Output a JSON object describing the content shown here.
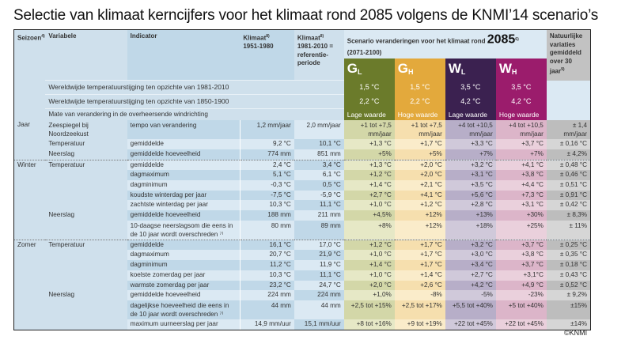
{
  "title": "Selectie van klimaat kerncijfers voor het klimaat rond 2085 volgens de KNMI’14 scenario’s",
  "header": {
    "seizoen": "Seizoen",
    "seizoen_note": "4)",
    "variabele": "Variabele",
    "indicator": "Indicator",
    "klimaat1": "Klimaat",
    "klimaat1_note": "8)",
    "klimaat1_period": "1951-1980",
    "klimaat2": "Klimaat",
    "klimaat2_note": "8)",
    "klimaat2_period": "1981-2010 = referentie-periode",
    "scenario_text": "Scenario veranderingen voor het klimaat rond",
    "scenario_year": "2085",
    "scenario_note": "6)",
    "scenario_period": "(2071-2100)",
    "natural": "Natuurlijke variaties gemiddeld over 30 jaar",
    "natural_note": "9)",
    "scenarios": [
      {
        "letter": "G",
        "sub": "L",
        "color": "#6b7b2b"
      },
      {
        "letter": "G",
        "sub": "H",
        "color": "#e3a93c"
      },
      {
        "letter": "W",
        "sub": "L",
        "color": "#3b2150"
      },
      {
        "letter": "W",
        "sub": "H",
        "color": "#9b1c6c"
      }
    ]
  },
  "global_rows": [
    {
      "label": "Wereldwijde temperatuurstijging ten opzichte van 1981-2010",
      "values": [
        "1,5 °C",
        "1,5 °C",
        "3,5 °C",
        "3,5 °C"
      ]
    },
    {
      "label": "Wereldwijde temperatuurstijging ten opzichte van 1850-1900",
      "values": [
        "2,2 °C",
        "2,2 °C",
        "4,2 °C",
        "4,2 °C"
      ]
    },
    {
      "label": "Mate van verandering in de overheersende windrichting",
      "values": [
        "Lage waarde",
        "Hoge waarde",
        "Lage waarde",
        "Hoge waarde"
      ]
    }
  ],
  "rows": [
    {
      "season": "Jaar",
      "variable": "Zeespiegel bij Noordzeekust",
      "indicator": "tempo van verandering",
      "k1": "1,2 mm/jaar",
      "k2": "2,0 mm/jaar",
      "gl": "+1 tot +7,5 mm/jaar",
      "gh": "+1 tot +7,5 mm/jaar",
      "wl": "+4 tot +10,5 mm/jaar",
      "wh": "+4 tot +10,5 mm/jaar",
      "nat": "± 1,4 mm/jaar",
      "two": true
    },
    {
      "season": "",
      "variable": "Temperatuur",
      "indicator": "gemiddelde",
      "k1": "9,2 °C",
      "k2": "10,1 °C",
      "gl": "+1,3 °C",
      "gh": "+1,7 °C",
      "wl": "+3,3 °C",
      "wh": "+3,7 °C",
      "nat": "± 0,16 °C"
    },
    {
      "season": "",
      "variable": "Neerslag",
      "indicator": "gemiddelde hoeveelheid",
      "k1": "774 mm",
      "k2": "851 mm",
      "gl": "+5%",
      "gh": "+5%",
      "wl": "+7%",
      "wh": "+7%",
      "nat": "± 4,2%"
    },
    {
      "season": "Winter",
      "variable": "Temperatuur",
      "indicator": "gemiddelde",
      "k1": "2,4 °C",
      "k2": "3,4 °C",
      "gl": "+1,3 °C",
      "gh": "+2,0 °C",
      "wl": "+3,2 °C",
      "wh": "+4,1 °C",
      "nat": "± 0,48 °C",
      "sep": true
    },
    {
      "season": "",
      "variable": "",
      "indicator": "dagmaximum",
      "k1": "5,1 °C",
      "k2": "6,1 °C",
      "gl": "+1,2 °C",
      "gh": "+2,0 °C",
      "wl": "+3,1 °C",
      "wh": "+3,8 °C",
      "nat": "± 0,46 °C"
    },
    {
      "season": "",
      "variable": "",
      "indicator": "dagminimum",
      "k1": "-0,3 °C",
      "k2": "0,5 °C",
      "gl": "+1,4 °C",
      "gh": "+2,1 °C",
      "wl": "+3,5 °C",
      "wh": "+4,4 °C",
      "nat": "± 0,51 °C"
    },
    {
      "season": "",
      "variable": "",
      "indicator": "koudste winterdag per jaar",
      "k1": "-7,5 °C",
      "k2": "-5,9 °C",
      "gl": "+2,7 °C",
      "gh": "+4,1 °C",
      "wl": "+5,6 °C",
      "wh": "+7,3 °C",
      "nat": "± 0,91 °C"
    },
    {
      "season": "",
      "variable": "",
      "indicator": "zachtste winterdag per jaar",
      "k1": "10,3 °C",
      "k2": "11,1 °C",
      "gl": "+1,0 °C",
      "gh": "+1,2 °C",
      "wl": "+2,8 °C",
      "wh": "+3,1 °C",
      "nat": "± 0,42 °C"
    },
    {
      "season": "",
      "variable": "Neerslag",
      "indicator": "gemiddelde hoeveelheid",
      "k1": "188 mm",
      "k2": "211 mm",
      "gl": "+4,5%",
      "gh": "+12%",
      "wl": "+13%",
      "wh": "+30%",
      "nat": "± 8,3%"
    },
    {
      "season": "",
      "variable": "",
      "indicator": "10-daagse neerslagsom die eens in de 10 jaar wordt overschreden ⁷⁾",
      "k1": "80 mm",
      "k2": "89 mm",
      "gl": "+8%",
      "gh": "+12%",
      "wl": "+18%",
      "wh": "+25%",
      "nat": "± 11%",
      "two": true
    },
    {
      "season": "Zomer",
      "variable": "Temperatuur",
      "indicator": "gemiddelde",
      "k1": "16,1 °C",
      "k2": "17,0 °C",
      "gl": "+1,2 °C",
      "gh": "+1,7 °C",
      "wl": "+3,2 °C",
      "wh": "+3,7 °C",
      "nat": "± 0,25 °C",
      "sep": true
    },
    {
      "season": "",
      "variable": "",
      "indicator": "dagmaximum",
      "k1": "20,7 °C",
      "k2": "21,9 °C",
      "gl": "+1,0 °C",
      "gh": "+1,7 °C",
      "wl": "+3,0 °C",
      "wh": "+3,8 °C",
      "nat": "± 0,35 °C"
    },
    {
      "season": "",
      "variable": "",
      "indicator": "dagminimum",
      "k1": "11,2 °C",
      "k2": "11,9 °C",
      "gl": "+1,4 °C",
      "gh": "+1,7 °C",
      "wl": "+3,4 °C",
      "wh": "+3,7 °C",
      "nat": "± 0,18 °C"
    },
    {
      "season": "",
      "variable": "",
      "indicator": "koelste zomerdag per jaar",
      "k1": "10,3 °C",
      "k2": "11,1 °C",
      "gl": "+1,0 °C",
      "gh": "+1,4 °C",
      "wl": "+2,7 °C",
      "wh": "+3,1°C",
      "nat": "± 0,43 °C"
    },
    {
      "season": "",
      "variable": "",
      "indicator": "warmste zomerdag per jaar",
      "k1": "23,2 °C",
      "k2": "24,7 °C",
      "gl": "+2,0 °C",
      "gh": "+2,6 °C",
      "wl": "+4,2 °C",
      "wh": "+4,9 °C",
      "nat": "± 0,52 °C"
    },
    {
      "season": "",
      "variable": "Neerslag",
      "indicator": "gemiddelde hoeveelheid",
      "k1": "224 mm",
      "k2": "224 mm",
      "gl": "+1,0%",
      "gh": "-8%",
      "wl": "-5%",
      "wh": "-23%",
      "nat": "± 9,2%"
    },
    {
      "season": "",
      "variable": "",
      "indicator": "dagelijkse hoeveelheid die eens in de 10 jaar wordt overschreden ⁷⁾",
      "k1": "44 mm",
      "k2": "44 mm",
      "gl": "+2,5 tot +15%",
      "gh": "+2,5 tot +17%",
      "wl": "+5,5 tot +40%",
      "wh": "+5 tot +40%",
      "nat": "±15%",
      "two": true
    },
    {
      "season": "",
      "variable": "",
      "indicator": "maximum uurneerslag per jaar",
      "k1": "14,9 mm/uur",
      "k2": "15,1 mm/uur",
      "gl": "+8 tot +16%",
      "gh": "+9 tot +19%",
      "wl": "+22 tot +45%",
      "wh": "+22 tot +45%",
      "nat": "±14%"
    }
  ],
  "colors": {
    "gl_dark": "#d3d7a8",
    "gl_light": "#e6e8c6",
    "gh_dark": "#f6dfae",
    "gh_light": "#faecca",
    "wl_dark": "#b7aec8",
    "wl_light": "#d0c9da",
    "wh_dark": "#dcb5c9",
    "wh_light": "#ead0dc",
    "nat_dark": "#bdbdbd",
    "nat_light": "#d6d6d6",
    "blue_dark": "#c0d8e8",
    "blue_light": "#dbe9f3"
  },
  "copyright": "©KNMI"
}
